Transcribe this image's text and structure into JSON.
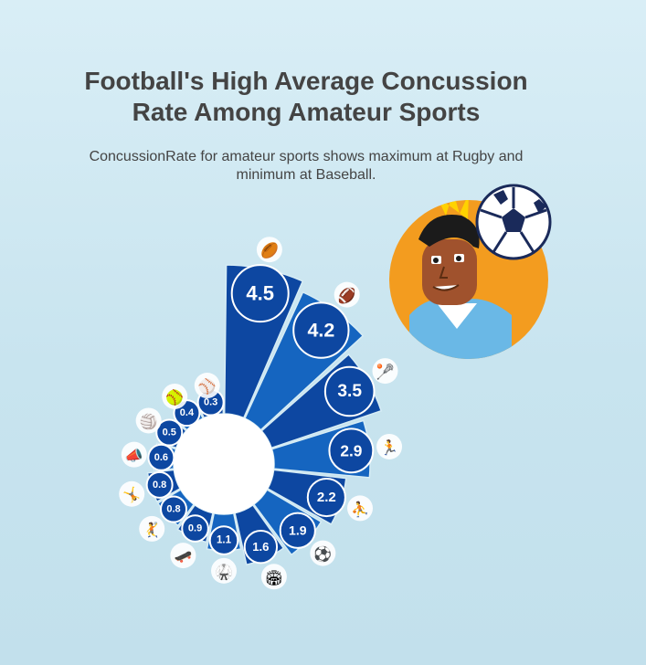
{
  "title": "Football's High Average Concussion Rate Among Amateur Sports",
  "subtitle": "ConcussionRate for amateur sports shows maximum at Rugby and minimum at Baseball.",
  "colors": {
    "bar": "#0d47a1",
    "bar_light": "#1565c0",
    "bubble_stroke": "#ffffff",
    "hub": "#ffffff"
  },
  "chart_data": {
    "type": "bar",
    "layout": "radial",
    "title": "Football's High Average Concussion Rate Among Amateur Sports",
    "subtitle": "ConcussionRate for amateur sports shows maximum at Rugby and minimum at Baseball.",
    "categories": [
      "Rugby",
      "Football",
      "Lacrosse",
      "Cross Country",
      "Basketball",
      "Soccer",
      "Field Hockey",
      "Martial Arts",
      "Skateboarding",
      "Handball",
      "Gymnastics",
      "Cheerleading",
      "Volleyball",
      "Softball",
      "Baseball"
    ],
    "icons": [
      "rugby-player-icon",
      "american-football-icon",
      "lacrosse-helmet-icon",
      "runner-icon",
      "basketball-player-icon",
      "soccer-ball-icon",
      "field-icon",
      "martial-arts-icon",
      "skateboarder-icon",
      "handball-player-icon",
      "gymnast-icon",
      "cheerleader-icon",
      "volleyball-net-icon",
      "softball-icon",
      "baseball-player-icon"
    ],
    "values": [
      4.5,
      4.2,
      3.5,
      2.9,
      2.2,
      1.9,
      1.6,
      1.1,
      0.9,
      0.8,
      0.8,
      0.6,
      0.5,
      0.4,
      0.3
    ],
    "labels": [
      "4.5",
      "4.2",
      "3.5",
      "2.9",
      "2.2",
      "1.9",
      "1.6",
      "1.1",
      "0.9",
      "0.8",
      "0.8",
      "0.6",
      "0.5",
      "0.4",
      "0.3"
    ],
    "ylim": [
      0,
      4.5
    ]
  }
}
